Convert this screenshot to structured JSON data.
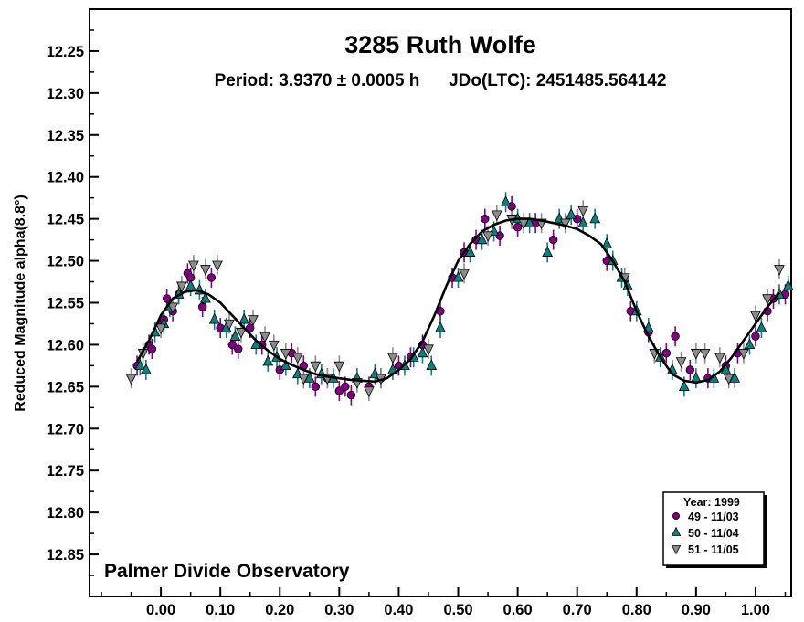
{
  "chart_data": {
    "type": "scatter",
    "title": "3285 Ruth Wolfe",
    "subtitle": "Period: 3.9370 ± 0.0005 h      JDo(LTC): 2451485.564142",
    "xlabel": "",
    "ylabel": "Reduced Magnitude alpha(8.8°)",
    "xlim": [
      -0.12,
      1.06
    ],
    "ylim": [
      12.2,
      12.9
    ],
    "y_inverted": true,
    "x_ticks": [
      0.0,
      0.1,
      0.2,
      0.3,
      0.4,
      0.5,
      0.6,
      0.7,
      0.8,
      0.9,
      1.0
    ],
    "x_tick_labels": [
      "0.00",
      "0.10",
      "0.20",
      "0.30",
      "0.40",
      "0.50",
      "0.60",
      "0.70",
      "0.80",
      "0.90",
      "1.00"
    ],
    "y_ticks": [
      12.25,
      12.3,
      12.35,
      12.4,
      12.45,
      12.5,
      12.55,
      12.6,
      12.65,
      12.7,
      12.75,
      12.8,
      12.85
    ],
    "y_tick_labels": [
      "12.25",
      "12.30",
      "12.35",
      "12.40",
      "12.45",
      "12.50",
      "12.55",
      "12.60",
      "12.65",
      "12.70",
      "12.75",
      "12.80",
      "12.85"
    ],
    "grid": false,
    "legend_position": "bottom-right",
    "legend_title": "Year: 1999",
    "credit": "Palmer Divide Observatory",
    "series": [
      {
        "name": "49 - 11/03",
        "marker": "circle",
        "color": "#800080",
        "points": [
          [
            -0.04,
            12.625
          ],
          [
            -0.02,
            12.6
          ],
          [
            -0.015,
            12.605
          ],
          [
            0.0,
            12.575
          ],
          [
            0.005,
            12.57
          ],
          [
            0.01,
            12.545
          ],
          [
            0.02,
            12.56
          ],
          [
            0.03,
            12.54
          ],
          [
            0.045,
            12.515
          ],
          [
            0.05,
            12.52
          ],
          [
            0.07,
            12.555
          ],
          [
            0.085,
            12.52
          ],
          [
            0.1,
            12.58
          ],
          [
            0.12,
            12.6
          ],
          [
            0.13,
            12.605
          ],
          [
            0.15,
            12.58
          ],
          [
            0.17,
            12.6
          ],
          [
            0.2,
            12.63
          ],
          [
            0.22,
            12.61
          ],
          [
            0.24,
            12.625
          ],
          [
            0.26,
            12.65
          ],
          [
            0.28,
            12.64
          ],
          [
            0.3,
            12.655
          ],
          [
            0.31,
            12.65
          ],
          [
            0.32,
            12.66
          ],
          [
            0.35,
            12.65
          ],
          [
            0.37,
            12.64
          ],
          [
            0.4,
            12.625
          ],
          [
            0.42,
            12.615
          ],
          [
            0.44,
            12.6
          ],
          [
            0.47,
            12.56
          ],
          [
            0.49,
            12.52
          ],
          [
            0.51,
            12.49
          ],
          [
            0.53,
            12.475
          ],
          [
            0.545,
            12.45
          ],
          [
            0.57,
            12.47
          ],
          [
            0.59,
            12.435
          ],
          [
            0.6,
            12.46
          ],
          [
            0.63,
            12.455
          ],
          [
            0.66,
            12.475
          ],
          [
            0.7,
            12.45
          ],
          [
            0.75,
            12.5
          ],
          [
            0.79,
            12.56
          ],
          [
            0.82,
            12.585
          ],
          [
            0.85,
            12.61
          ],
          [
            0.865,
            12.59
          ],
          [
            0.89,
            12.63
          ],
          [
            0.92,
            12.64
          ],
          [
            0.95,
            12.625
          ],
          [
            0.97,
            12.61
          ],
          [
            1.0,
            12.59
          ],
          [
            1.02,
            12.56
          ],
          [
            1.03,
            12.545
          ],
          [
            1.05,
            12.54
          ]
        ]
      },
      {
        "name": "50 - 11/04",
        "marker": "triangle-up",
        "color": "#0d7f7f",
        "points": [
          [
            -0.035,
            12.625
          ],
          [
            -0.025,
            12.63
          ],
          [
            -0.01,
            12.585
          ],
          [
            0.005,
            12.575
          ],
          [
            0.015,
            12.555
          ],
          [
            0.03,
            12.54
          ],
          [
            0.05,
            12.53
          ],
          [
            0.065,
            12.535
          ],
          [
            0.075,
            12.545
          ],
          [
            0.09,
            12.57
          ],
          [
            0.11,
            12.58
          ],
          [
            0.125,
            12.59
          ],
          [
            0.14,
            12.57
          ],
          [
            0.16,
            12.6
          ],
          [
            0.18,
            12.62
          ],
          [
            0.195,
            12.615
          ],
          [
            0.21,
            12.625
          ],
          [
            0.23,
            12.635
          ],
          [
            0.25,
            12.64
          ],
          [
            0.27,
            12.635
          ],
          [
            0.29,
            12.64
          ],
          [
            0.33,
            12.64
          ],
          [
            0.36,
            12.635
          ],
          [
            0.39,
            12.63
          ],
          [
            0.41,
            12.625
          ],
          [
            0.425,
            12.615
          ],
          [
            0.44,
            12.61
          ],
          [
            0.455,
            12.625
          ],
          [
            0.47,
            12.58
          ],
          [
            0.5,
            12.52
          ],
          [
            0.52,
            12.49
          ],
          [
            0.54,
            12.475
          ],
          [
            0.56,
            12.465
          ],
          [
            0.58,
            12.43
          ],
          [
            0.6,
            12.45
          ],
          [
            0.62,
            12.455
          ],
          [
            0.65,
            12.49
          ],
          [
            0.67,
            12.45
          ],
          [
            0.69,
            12.445
          ],
          [
            0.71,
            12.455
          ],
          [
            0.73,
            12.45
          ],
          [
            0.75,
            12.48
          ],
          [
            0.76,
            12.5
          ],
          [
            0.775,
            12.52
          ],
          [
            0.785,
            12.53
          ],
          [
            0.8,
            12.56
          ],
          [
            0.82,
            12.58
          ],
          [
            0.84,
            12.615
          ],
          [
            0.86,
            12.63
          ],
          [
            0.88,
            12.65
          ],
          [
            0.9,
            12.64
          ],
          [
            0.93,
            12.64
          ],
          [
            0.95,
            12.63
          ],
          [
            0.965,
            12.64
          ],
          [
            0.99,
            12.6
          ],
          [
            1.01,
            12.58
          ],
          [
            1.04,
            12.54
          ],
          [
            1.055,
            12.53
          ]
        ]
      },
      {
        "name": "51 - 11/05",
        "marker": "triangle-down",
        "color": "#8c8c8c",
        "points": [
          [
            -0.05,
            12.64
          ],
          [
            -0.03,
            12.61
          ],
          [
            0.0,
            12.58
          ],
          [
            0.02,
            12.555
          ],
          [
            0.035,
            12.53
          ],
          [
            0.055,
            12.505
          ],
          [
            0.075,
            12.51
          ],
          [
            0.095,
            12.505
          ],
          [
            0.115,
            12.575
          ],
          [
            0.135,
            12.585
          ],
          [
            0.155,
            12.57
          ],
          [
            0.175,
            12.59
          ],
          [
            0.19,
            12.6
          ],
          [
            0.21,
            12.61
          ],
          [
            0.23,
            12.615
          ],
          [
            0.24,
            12.64
          ],
          [
            0.26,
            12.625
          ],
          [
            0.28,
            12.64
          ],
          [
            0.3,
            12.625
          ],
          [
            0.33,
            12.645
          ],
          [
            0.35,
            12.655
          ],
          [
            0.37,
            12.64
          ],
          [
            0.39,
            12.615
          ],
          [
            0.45,
            12.605
          ],
          [
            0.51,
            12.515
          ],
          [
            0.55,
            12.47
          ],
          [
            0.565,
            12.445
          ],
          [
            0.59,
            12.45
          ],
          [
            0.61,
            12.455
          ],
          [
            0.64,
            12.455
          ],
          [
            0.68,
            12.455
          ],
          [
            0.71,
            12.44
          ],
          [
            0.78,
            12.52
          ],
          [
            0.83,
            12.61
          ],
          [
            0.875,
            12.62
          ],
          [
            0.9,
            12.61
          ],
          [
            0.915,
            12.61
          ],
          [
            0.94,
            12.615
          ],
          [
            0.955,
            12.64
          ],
          [
            0.98,
            12.61
          ],
          [
            1.0,
            12.565
          ],
          [
            1.02,
            12.545
          ],
          [
            1.04,
            12.51
          ]
        ]
      }
    ],
    "fit_curve": {
      "name": "fit",
      "color": "#000000",
      "x": [
        -0.04,
        -0.02,
        0.0,
        0.02,
        0.04,
        0.06,
        0.08,
        0.1,
        0.12,
        0.14,
        0.16,
        0.18,
        0.2,
        0.22,
        0.24,
        0.26,
        0.28,
        0.3,
        0.32,
        0.34,
        0.36,
        0.38,
        0.4,
        0.42,
        0.44,
        0.46,
        0.48,
        0.5,
        0.52,
        0.54,
        0.56,
        0.58,
        0.6,
        0.62,
        0.64,
        0.66,
        0.68,
        0.7,
        0.72,
        0.74,
        0.76,
        0.78,
        0.8,
        0.82,
        0.84,
        0.86,
        0.88,
        0.9,
        0.92,
        0.94,
        0.96,
        0.98,
        1.0,
        1.02,
        1.04
      ],
      "y": [
        12.62,
        12.595,
        12.565,
        12.545,
        12.537,
        12.535,
        12.54,
        12.55,
        12.565,
        12.58,
        12.595,
        12.607,
        12.617,
        12.624,
        12.63,
        12.635,
        12.638,
        12.64,
        12.642,
        12.643,
        12.644,
        12.64,
        12.63,
        12.617,
        12.596,
        12.565,
        12.53,
        12.5,
        12.48,
        12.465,
        12.457,
        12.452,
        12.45,
        12.45,
        12.452,
        12.455,
        12.458,
        12.462,
        12.47,
        12.48,
        12.5,
        12.525,
        12.56,
        12.59,
        12.615,
        12.635,
        12.643,
        12.645,
        12.642,
        12.632,
        12.615,
        12.595,
        12.575,
        12.555,
        12.538
      ]
    }
  }
}
